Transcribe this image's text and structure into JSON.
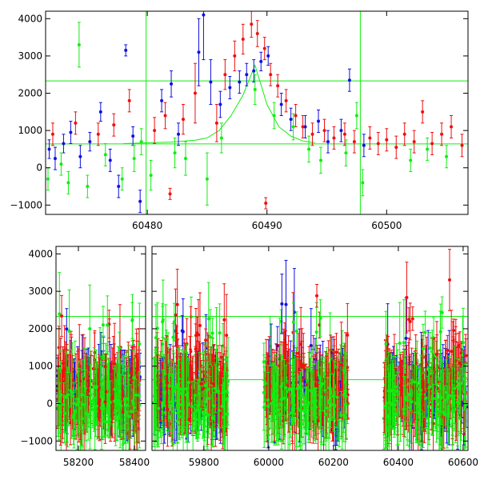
{
  "colors": {
    "blue": "#1010e0",
    "red": "#ee1010",
    "green": "#10ee10",
    "axis": "#000000"
  },
  "chart_data": [
    {
      "type": "scatter",
      "title": "",
      "xlabel": "",
      "ylabel": "",
      "xlim": [
        60471.5,
        60506.8
      ],
      "ylim": [
        -1250,
        4200
      ],
      "grid": false,
      "x_ticks": [
        {
          "value": 60480,
          "label": "60480"
        },
        {
          "value": 60490,
          "label": "60490"
        },
        {
          "value": 60500,
          "label": "60500"
        }
      ],
      "y_ticks": [
        {
          "value": -1000,
          "label": "−1000"
        },
        {
          "value": 0,
          "label": "0"
        },
        {
          "value": 1000,
          "label": "1000"
        },
        {
          "value": 2000,
          "label": "2000"
        },
        {
          "value": 3000,
          "label": "3000"
        },
        {
          "value": 4000,
          "label": "4000"
        }
      ],
      "reference_lines": [
        {
          "orientation": "horizontal",
          "value": 2330,
          "color": "#10ee10"
        },
        {
          "orientation": "horizontal",
          "value": 640,
          "color": "#10ee10"
        },
        {
          "orientation": "vertical",
          "value": 60479.9,
          "color": "#10ee10"
        },
        {
          "orientation": "vertical",
          "value": 60497.8,
          "color": "#10ee10"
        }
      ],
      "model_curve": {
        "color": "#10ee10",
        "x": [
          60478,
          60480,
          60482,
          60484,
          60485,
          60486,
          60487,
          60488,
          60489,
          60490,
          60491,
          60492,
          60493,
          60494
        ],
        "y": [
          650,
          670,
          690,
          740,
          800,
          1000,
          1400,
          1950,
          2750,
          1700,
          1100,
          850,
          720,
          670
        ]
      },
      "series": [
        {
          "color": "#1010e0",
          "points": [
            {
              "x": 60471.8,
              "y": 500,
              "e": 250
            },
            {
              "x": 60472.3,
              "y": 250,
              "e": 300
            },
            {
              "x": 60473.0,
              "y": 650,
              "e": 250
            },
            {
              "x": 60473.6,
              "y": 950,
              "e": 300
            },
            {
              "x": 60474.4,
              "y": 300,
              "e": 300
            },
            {
              "x": 60475.2,
              "y": 700,
              "e": 250
            },
            {
              "x": 60476.1,
              "y": 1500,
              "e": 250
            },
            {
              "x": 60476.9,
              "y": 200,
              "e": 300
            },
            {
              "x": 60477.6,
              "y": -500,
              "e": 300
            },
            {
              "x": 60478.2,
              "y": 3150,
              "e": 150
            },
            {
              "x": 60478.8,
              "y": 850,
              "e": 250
            },
            {
              "x": 60479.4,
              "y": -900,
              "e": 300
            },
            {
              "x": 60481.2,
              "y": 1800,
              "e": 300
            },
            {
              "x": 60482.0,
              "y": 2250,
              "e": 350
            },
            {
              "x": 60482.6,
              "y": 900,
              "e": 300
            },
            {
              "x": 60484.3,
              "y": 3100,
              "e": 900
            },
            {
              "x": 60484.7,
              "y": 4100,
              "e": 1200
            },
            {
              "x": 60485.3,
              "y": 2300,
              "e": 600
            },
            {
              "x": 60486.1,
              "y": 1700,
              "e": 350
            },
            {
              "x": 60486.9,
              "y": 2150,
              "e": 300
            },
            {
              "x": 60487.7,
              "y": 2300,
              "e": 300
            },
            {
              "x": 60488.3,
              "y": 2500,
              "e": 300
            },
            {
              "x": 60488.9,
              "y": 2600,
              "e": 300
            },
            {
              "x": 60489.5,
              "y": 2850,
              "e": 250
            },
            {
              "x": 60490.1,
              "y": 3000,
              "e": 250
            },
            {
              "x": 60491.2,
              "y": 1700,
              "e": 300
            },
            {
              "x": 60492.0,
              "y": 1300,
              "e": 300
            },
            {
              "x": 60493.2,
              "y": 1100,
              "e": 300
            },
            {
              "x": 60494.3,
              "y": 1250,
              "e": 300
            },
            {
              "x": 60495.1,
              "y": 700,
              "e": 300
            },
            {
              "x": 60496.2,
              "y": 1000,
              "e": 300
            },
            {
              "x": 60496.9,
              "y": 2350,
              "e": 300
            },
            {
              "x": 60498.1,
              "y": 600,
              "e": 300
            }
          ]
        },
        {
          "color": "#ee1010",
          "points": [
            {
              "x": 60472.1,
              "y": 900,
              "e": 300
            },
            {
              "x": 60474.0,
              "y": 1200,
              "e": 300
            },
            {
              "x": 60475.9,
              "y": 900,
              "e": 300
            },
            {
              "x": 60477.2,
              "y": 1150,
              "e": 300
            },
            {
              "x": 60478.5,
              "y": 1800,
              "e": 300
            },
            {
              "x": 60480.6,
              "y": 1000,
              "e": 350
            },
            {
              "x": 60481.5,
              "y": 1400,
              "e": 350
            },
            {
              "x": 60481.9,
              "y": -700,
              "e": 150
            },
            {
              "x": 60483.0,
              "y": 1300,
              "e": 400
            },
            {
              "x": 60484.0,
              "y": 2000,
              "e": 800
            },
            {
              "x": 60485.8,
              "y": 1200,
              "e": 500
            },
            {
              "x": 60486.5,
              "y": 2500,
              "e": 400
            },
            {
              "x": 60487.3,
              "y": 3000,
              "e": 400
            },
            {
              "x": 60488.0,
              "y": 3450,
              "e": 400
            },
            {
              "x": 60488.7,
              "y": 3850,
              "e": 350
            },
            {
              "x": 60489.2,
              "y": 3600,
              "e": 350
            },
            {
              "x": 60489.8,
              "y": 3200,
              "e": 300
            },
            {
              "x": 60490.3,
              "y": 2500,
              "e": 300
            },
            {
              "x": 60490.9,
              "y": 2200,
              "e": 300
            },
            {
              "x": 60489.9,
              "y": -950,
              "e": 150
            },
            {
              "x": 60491.6,
              "y": 1800,
              "e": 300
            },
            {
              "x": 60492.4,
              "y": 1400,
              "e": 300
            },
            {
              "x": 60493.0,
              "y": 1100,
              "e": 300
            },
            {
              "x": 60493.8,
              "y": 900,
              "e": 300
            },
            {
              "x": 60494.8,
              "y": 1000,
              "e": 300
            },
            {
              "x": 60495.6,
              "y": 800,
              "e": 300
            },
            {
              "x": 60496.5,
              "y": 900,
              "e": 300
            },
            {
              "x": 60497.3,
              "y": 700,
              "e": 300
            },
            {
              "x": 60498.6,
              "y": 800,
              "e": 300
            },
            {
              "x": 60499.3,
              "y": 650,
              "e": 300
            },
            {
              "x": 60500.0,
              "y": 750,
              "e": 300
            },
            {
              "x": 60500.8,
              "y": 550,
              "e": 300
            },
            {
              "x": 60501.5,
              "y": 900,
              "e": 300
            },
            {
              "x": 60502.3,
              "y": 700,
              "e": 300
            },
            {
              "x": 60503.0,
              "y": 1500,
              "e": 300
            },
            {
              "x": 60503.8,
              "y": 650,
              "e": 300
            },
            {
              "x": 60504.6,
              "y": 900,
              "e": 300
            },
            {
              "x": 60505.4,
              "y": 1100,
              "e": 300
            },
            {
              "x": 60506.3,
              "y": 600,
              "e": 300
            }
          ]
        },
        {
          "color": "#10ee10",
          "points": [
            {
              "x": 60471.7,
              "y": -300,
              "e": 300
            },
            {
              "x": 60472.8,
              "y": 100,
              "e": 300
            },
            {
              "x": 60473.4,
              "y": -400,
              "e": 300
            },
            {
              "x": 60474.3,
              "y": 3300,
              "e": 600
            },
            {
              "x": 60475.0,
              "y": -500,
              "e": 300
            },
            {
              "x": 60476.5,
              "y": 350,
              "e": 300
            },
            {
              "x": 60477.9,
              "y": -300,
              "e": 300
            },
            {
              "x": 60478.9,
              "y": 250,
              "e": 350
            },
            {
              "x": 60479.5,
              "y": 700,
              "e": 350
            },
            {
              "x": 60480.3,
              "y": -200,
              "e": 400
            },
            {
              "x": 60482.3,
              "y": 400,
              "e": 400
            },
            {
              "x": 60483.2,
              "y": 250,
              "e": 450
            },
            {
              "x": 60485.0,
              "y": -300,
              "e": 700
            },
            {
              "x": 60486.2,
              "y": 800,
              "e": 400
            },
            {
              "x": 60489.0,
              "y": 2100,
              "e": 400
            },
            {
              "x": 60490.6,
              "y": 1400,
              "e": 350
            },
            {
              "x": 60492.2,
              "y": 1100,
              "e": 350
            },
            {
              "x": 60493.5,
              "y": 500,
              "e": 350
            },
            {
              "x": 60494.5,
              "y": 200,
              "e": 350
            },
            {
              "x": 60496.6,
              "y": 400,
              "e": 350
            },
            {
              "x": 60497.5,
              "y": 1400,
              "e": 350
            },
            {
              "x": 60498.0,
              "y": -400,
              "e": 350
            },
            {
              "x": 60502.0,
              "y": 200,
              "e": 300
            },
            {
              "x": 60503.4,
              "y": 500,
              "e": 300
            },
            {
              "x": 60505.0,
              "y": 300,
              "e": 300
            }
          ]
        }
      ]
    },
    {
      "type": "scatter",
      "title": "",
      "xlabel": "",
      "ylabel": "",
      "ylim": [
        -1250,
        4200
      ],
      "grid": false,
      "x_ticks": [
        {
          "value": 58200,
          "label": "58200"
        },
        {
          "value": 58400,
          "label": "58400"
        },
        {
          "value": 59800,
          "label": "59800"
        },
        {
          "value": 60000,
          "label": "60000"
        },
        {
          "value": 60200,
          "label": "60200"
        },
        {
          "value": 60400,
          "label": "60400"
        },
        {
          "value": 60600,
          "label": "60600"
        }
      ],
      "y_ticks": [
        {
          "value": -1000,
          "label": "−1000"
        },
        {
          "value": 0,
          "label": "0"
        },
        {
          "value": 1000,
          "label": "1000"
        },
        {
          "value": 2000,
          "label": "2000"
        },
        {
          "value": 3000,
          "label": "3000"
        },
        {
          "value": 4000,
          "label": "4000"
        }
      ],
      "reference_lines": [
        {
          "orientation": "horizontal",
          "value": 2330,
          "color": "#10ee10"
        },
        {
          "orientation": "horizontal",
          "value": 640,
          "color": "#10ee10"
        }
      ],
      "axis_segments": [
        {
          "x_from": 58120,
          "x_to": 58440
        },
        {
          "x_from": 59640,
          "x_to": 60615
        }
      ],
      "seasons": [
        {
          "x_from": 58125,
          "x_to": 58420
        },
        {
          "x_from": 59645,
          "x_to": 59875
        },
        {
          "x_from": 59985,
          "x_to": 60245
        },
        {
          "x_from": 60355,
          "x_to": 60610
        }
      ],
      "series": [
        {
          "name": "",
          "color": "#1010e0",
          "note_scatter_spread": [
            -600,
            1300
          ]
        },
        {
          "name": "",
          "color": "#ee1010",
          "note_scatter_spread": [
            -800,
            1600
          ]
        },
        {
          "name": "",
          "color": "#10ee10",
          "note_scatter_spread": [
            -700,
            900
          ]
        }
      ]
    }
  ]
}
